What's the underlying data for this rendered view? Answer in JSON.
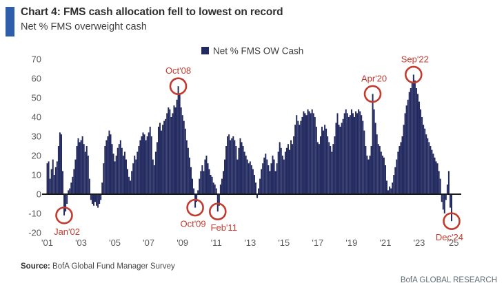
{
  "header": {
    "title": "Chart 4: FMS cash allocation fell to lowest on record",
    "subtitle": "Net % FMS overweight cash",
    "accent_color": "#2e5da9"
  },
  "chart_data": {
    "type": "bar",
    "title": "Net % FMS overweight cash",
    "xlabel": "",
    "ylabel": "Net % FMS overweight cash",
    "legend": {
      "label": "Net % FMS OW Cash",
      "position": "top-center",
      "text_color": "#3d3d3d"
    },
    "bar_color": "#222a60",
    "annotation_color": "#c33a2e",
    "axis_label_color": "#595959",
    "zero_line_color": "#1a1a1a",
    "grid": false,
    "frequency": "monthly",
    "x_start": "2001-01",
    "x_end": "2024-12",
    "ylim": [
      -20,
      70
    ],
    "y_ticks": [
      70,
      60,
      50,
      40,
      30,
      20,
      10,
      0,
      -10,
      -20
    ],
    "x_tick_labels": [
      "'01",
      "'03",
      "'05",
      "'07",
      "'09",
      "'11",
      "'13",
      "'15",
      "'17",
      "'19",
      "'21",
      "'23",
      "'25"
    ],
    "x_tick_month_step": 24,
    "values": [
      16,
      17,
      8,
      13,
      18,
      10,
      14,
      17,
      25,
      32,
      31,
      12,
      -11,
      -9,
      -5,
      2,
      3,
      6,
      9,
      13,
      18,
      25,
      29,
      27,
      28,
      30,
      26,
      22,
      25,
      20,
      8,
      -3,
      -5,
      -6,
      -4,
      -6,
      -7,
      -5,
      -3,
      6,
      16,
      25,
      28,
      30,
      33,
      31,
      26,
      21,
      17,
      20,
      24,
      26,
      28,
      24,
      20,
      22,
      18,
      13,
      9,
      7,
      12,
      16,
      20,
      18,
      22,
      25,
      28,
      30,
      32,
      31,
      28,
      30,
      32,
      35,
      30,
      18,
      15,
      22,
      27,
      35,
      37,
      33,
      36,
      38,
      39,
      42,
      45,
      44,
      40,
      42,
      46,
      45,
      49,
      56,
      52,
      45,
      41,
      38,
      34,
      28,
      24,
      19,
      14,
      8,
      3,
      -7,
      -4,
      2,
      8,
      12,
      15,
      12,
      18,
      20,
      16,
      13,
      10,
      9,
      6,
      5,
      3,
      -9,
      -6,
      5,
      8,
      12,
      18,
      25,
      30,
      31,
      28,
      29,
      30,
      28,
      25,
      18,
      24,
      29,
      27,
      25,
      22,
      20,
      18,
      16,
      17,
      15,
      13,
      10,
      6,
      -2,
      3,
      8,
      13,
      16,
      19,
      21,
      18,
      15,
      12,
      16,
      20,
      18,
      12,
      16,
      22,
      27,
      24,
      20,
      18,
      22,
      24,
      26,
      23,
      28,
      26,
      30,
      36,
      41,
      38,
      36,
      38,
      40,
      43,
      42,
      41,
      44,
      43,
      42,
      44,
      42,
      40,
      35,
      27,
      26,
      30,
      35,
      33,
      36,
      34,
      30,
      27,
      25,
      22,
      26,
      30,
      37,
      42,
      36,
      35,
      37,
      39,
      42,
      44,
      42,
      40,
      41,
      44,
      42,
      40,
      43,
      42,
      44,
      43,
      41,
      38,
      33,
      25,
      20,
      18,
      20,
      25,
      52,
      44,
      37,
      31,
      26,
      25,
      22,
      20,
      19,
      15,
      7,
      2,
      4,
      3,
      6,
      10,
      14,
      18,
      22,
      25,
      27,
      30,
      36,
      42,
      46,
      49,
      53,
      55,
      58,
      62,
      59,
      55,
      52,
      48,
      44,
      40,
      36,
      34,
      31,
      29,
      27,
      25,
      23,
      21,
      19,
      17,
      16,
      12,
      8,
      -4,
      -8,
      -10,
      -3,
      5,
      12,
      -7,
      -14
    ],
    "annotations": [
      {
        "label": "Jan'02",
        "month_index": 12,
        "value": -11,
        "label_side": "below",
        "label_dx": 4
      },
      {
        "label": "Oct'08",
        "month_index": 93,
        "value": 56,
        "label_side": "above",
        "label_dx": 0
      },
      {
        "label": "Oct'09",
        "month_index": 105,
        "value": -7,
        "label_side": "below",
        "label_dx": -3
      },
      {
        "label": "Feb'11",
        "month_index": 121,
        "value": -9,
        "label_side": "below",
        "label_dx": 9
      },
      {
        "label": "Apr'20",
        "month_index": 231,
        "value": 52,
        "label_side": "above",
        "label_dx": 2
      },
      {
        "label": "Sep'22",
        "month_index": 260,
        "value": 62,
        "label_side": "above",
        "label_dx": 2
      },
      {
        "label": "Dec'24",
        "month_index": 287,
        "value": -14,
        "label_side": "below",
        "label_dx": -3
      }
    ]
  },
  "source": {
    "label": "Source:",
    "text": "BofA Global Fund Manager Survey"
  },
  "footer": {
    "brand": "BofA GLOBAL RESEARCH"
  }
}
